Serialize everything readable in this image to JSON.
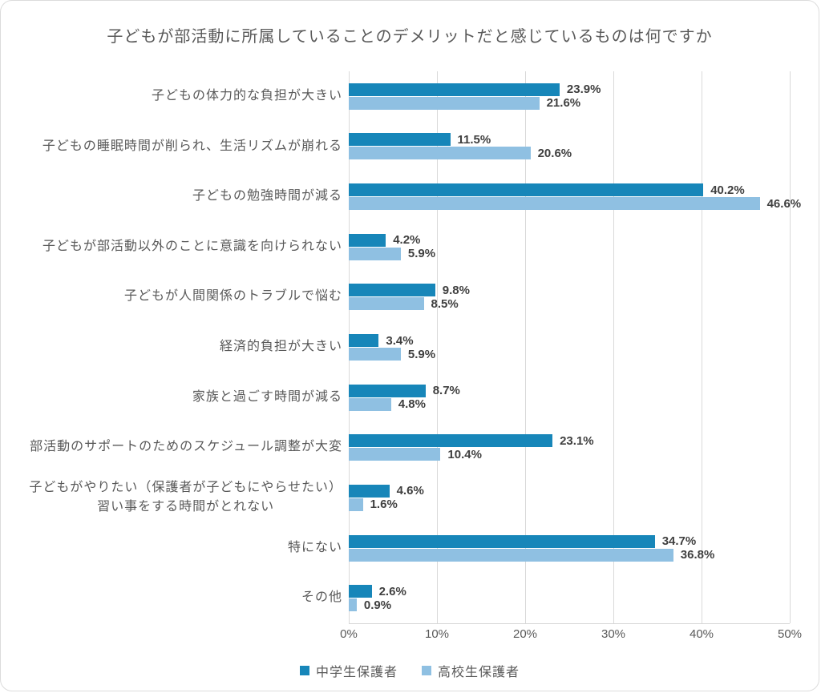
{
  "chart": {
    "title": "子どもが部活動に所属していることのデメリットだと感じているものは何ですか"
  },
  "chart_data": {
    "type": "bar",
    "orientation": "horizontal",
    "title": "子どもが部活動に所属していることのデメリットだと感じているものは何ですか",
    "categories": [
      "子どもの体力的な負担が大きい",
      "子どもの睡眠時間が削られ、生活リズムが崩れる",
      "子どもの勉強時間が減る",
      "子どもが部活動以外のことに意識を向けられない",
      "子どもが人間関係のトラブルで悩む",
      "経済的負担が大きい",
      "家族と過ごす時間が減る",
      "部活動のサポートのためのスケジュール調整が大変",
      "子どもがやりたい（保護者が子どもにやらせたい）\n習い事をする時間がとれない",
      "特にない",
      "その他"
    ],
    "series": [
      {
        "name": "中学生保護者",
        "color": "#1786b9",
        "values": [
          23.9,
          11.5,
          40.2,
          4.2,
          9.8,
          3.4,
          8.7,
          23.1,
          4.6,
          34.7,
          2.6
        ]
      },
      {
        "name": "高校生保護者",
        "color": "#8fc0e2",
        "values": [
          21.6,
          20.6,
          46.6,
          5.9,
          8.5,
          5.9,
          4.8,
          10.4,
          1.6,
          36.8,
          0.9
        ]
      }
    ],
    "value_suffix": "%",
    "xlabel": "",
    "ylabel": "",
    "xlim": [
      0,
      50
    ],
    "x_ticks": [
      "0%",
      "10%",
      "20%",
      "30%",
      "40%",
      "50%"
    ],
    "grid": true,
    "legend_position": "bottom",
    "colors": {
      "grid": "#d9d9d9",
      "axis_line": "#d6d6d6",
      "label_text": "#595959",
      "value_text": "#3f3f3f",
      "background": "#ffffff"
    }
  }
}
